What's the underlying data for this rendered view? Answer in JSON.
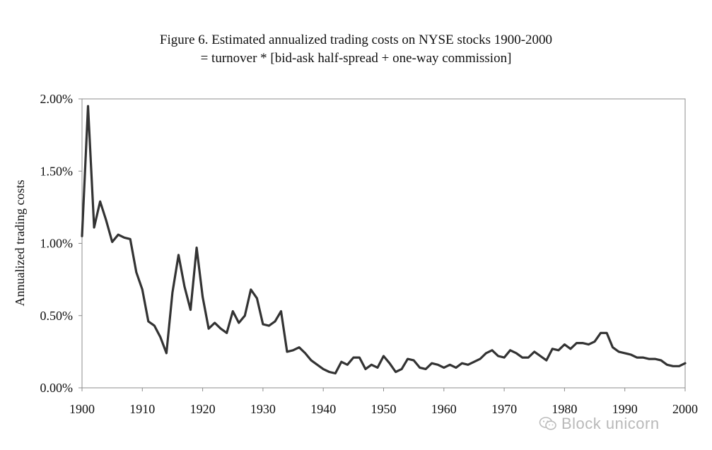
{
  "chart_data": {
    "type": "line",
    "title": "Figure 6.  Estimated annualized trading costs on NYSE stocks 1900-2000",
    "subtitle": "= turnover * [bid-ask half-spread + one-way commission]",
    "xlabel": "",
    "ylabel": "Annualized trading costs",
    "xlim": [
      1900,
      2000
    ],
    "ylim": [
      0,
      0.02
    ],
    "x_ticks": [
      1900,
      1910,
      1920,
      1930,
      1940,
      1950,
      1960,
      1970,
      1980,
      1990,
      2000
    ],
    "x_tick_labels": [
      "1900",
      "1910",
      "1920",
      "1930",
      "1940",
      "1950",
      "1960",
      "1970",
      "1980",
      "1990",
      "2000"
    ],
    "y_ticks": [
      0,
      0.005,
      0.01,
      0.015,
      0.02
    ],
    "y_tick_labels": [
      "0.00%",
      "0.50%",
      "1.00%",
      "1.50%",
      "2.00%"
    ],
    "grid": false,
    "line_color": "#333333",
    "series": [
      {
        "x": [
          1900,
          1901,
          1902,
          1903,
          1904,
          1905,
          1906,
          1907,
          1908,
          1909,
          1910,
          1911,
          1912,
          1913,
          1914,
          1915,
          1916,
          1917,
          1918,
          1919,
          1920,
          1921,
          1922,
          1923,
          1924,
          1925,
          1926,
          1927,
          1928,
          1929,
          1930,
          1931,
          1932,
          1933,
          1934,
          1935,
          1936,
          1937,
          1938,
          1939,
          1940,
          1941,
          1942,
          1943,
          1944,
          1945,
          1946,
          1947,
          1948,
          1949,
          1950,
          1951,
          1952,
          1953,
          1954,
          1955,
          1956,
          1957,
          1958,
          1959,
          1960,
          1961,
          1962,
          1963,
          1964,
          1965,
          1966,
          1967,
          1968,
          1969,
          1970,
          1971,
          1972,
          1973,
          1974,
          1975,
          1976,
          1977,
          1978,
          1979,
          1980,
          1981,
          1982,
          1983,
          1984,
          1985,
          1986,
          1987,
          1988,
          1989,
          1990,
          1991,
          1992,
          1993,
          1994,
          1995,
          1996,
          1997,
          1998,
          1999,
          2000
        ],
        "values": [
          0.0105,
          0.0195,
          0.0111,
          0.0129,
          0.0116,
          0.0101,
          0.0106,
          0.0104,
          0.0103,
          0.008,
          0.0068,
          0.0046,
          0.0043,
          0.0035,
          0.0024,
          0.0066,
          0.0092,
          0.007,
          0.0054,
          0.0097,
          0.0063,
          0.0041,
          0.0045,
          0.0041,
          0.0038,
          0.0053,
          0.0045,
          0.005,
          0.0068,
          0.0062,
          0.0044,
          0.0043,
          0.0046,
          0.0053,
          0.0025,
          0.0026,
          0.0028,
          0.0024,
          0.0019,
          0.0016,
          0.0013,
          0.0011,
          0.001,
          0.0018,
          0.0016,
          0.0021,
          0.0021,
          0.0013,
          0.0016,
          0.0014,
          0.0022,
          0.0017,
          0.0011,
          0.0013,
          0.002,
          0.0019,
          0.0014,
          0.0013,
          0.0017,
          0.0016,
          0.0014,
          0.0016,
          0.0014,
          0.0017,
          0.0016,
          0.0018,
          0.002,
          0.0024,
          0.0026,
          0.0022,
          0.0021,
          0.0026,
          0.0024,
          0.0021,
          0.0021,
          0.0025,
          0.0022,
          0.0019,
          0.0027,
          0.0026,
          0.003,
          0.0027,
          0.0031,
          0.0031,
          0.003,
          0.0032,
          0.0038,
          0.0038,
          0.0028,
          0.0025,
          0.0024,
          0.0023,
          0.0021,
          0.0021,
          0.002,
          0.002,
          0.0019,
          0.0016,
          0.0015,
          0.0015,
          0.0017
        ]
      }
    ]
  },
  "watermark": {
    "text": "Block unicorn"
  }
}
